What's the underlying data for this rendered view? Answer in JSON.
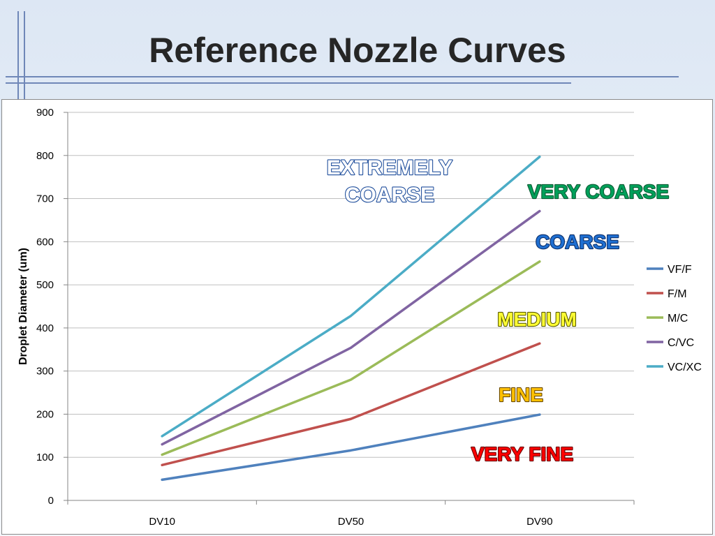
{
  "slide": {
    "title": "Reference Nozzle Curves"
  },
  "chart_data": {
    "type": "line",
    "categories": [
      "DV10",
      "DV50",
      "DV90"
    ],
    "ylabel": "Droplet Diameter (um)",
    "xlabel": "",
    "ylim": [
      0,
      900
    ],
    "yticks": [
      "0",
      "100",
      "200",
      "300",
      "400",
      "500",
      "600",
      "700",
      "800",
      "900"
    ],
    "grid": true,
    "legend_position": "right",
    "series": [
      {
        "name": "VF/F",
        "color": "#4f81bd",
        "values": [
          48,
          116,
          199
        ]
      },
      {
        "name": "F/M",
        "color": "#c0504d",
        "values": [
          82,
          189,
          364
        ]
      },
      {
        "name": "M/C",
        "color": "#9bbb59",
        "values": [
          106,
          280,
          554
        ]
      },
      {
        "name": "C/VC",
        "color": "#8064a2",
        "values": [
          130,
          354,
          671
        ]
      },
      {
        "name": "VC/XC",
        "color": "#4bacc6",
        "values": [
          149,
          428,
          797
        ]
      }
    ],
    "annotations": [
      {
        "lines": [
          "EXTREMELY",
          "COARSE"
        ],
        "color": "#ffffff",
        "stroke": "#1f4e9c"
      },
      {
        "lines": [
          "VERY COARSE"
        ],
        "color": "#00a05a",
        "stroke": "#0a5c33"
      },
      {
        "lines": [
          "COARSE"
        ],
        "color": "#1f6fd1",
        "stroke": "#0b2f6b"
      },
      {
        "lines": [
          "MEDIUM"
        ],
        "color": "#ffff33",
        "stroke": "#5a5a00"
      },
      {
        "lines": [
          "FINE"
        ],
        "color": "#ffc000",
        "stroke": "#6b4a00"
      },
      {
        "lines": [
          "VERY FINE"
        ],
        "color": "#ff0000",
        "stroke": "#6b0000"
      }
    ]
  }
}
